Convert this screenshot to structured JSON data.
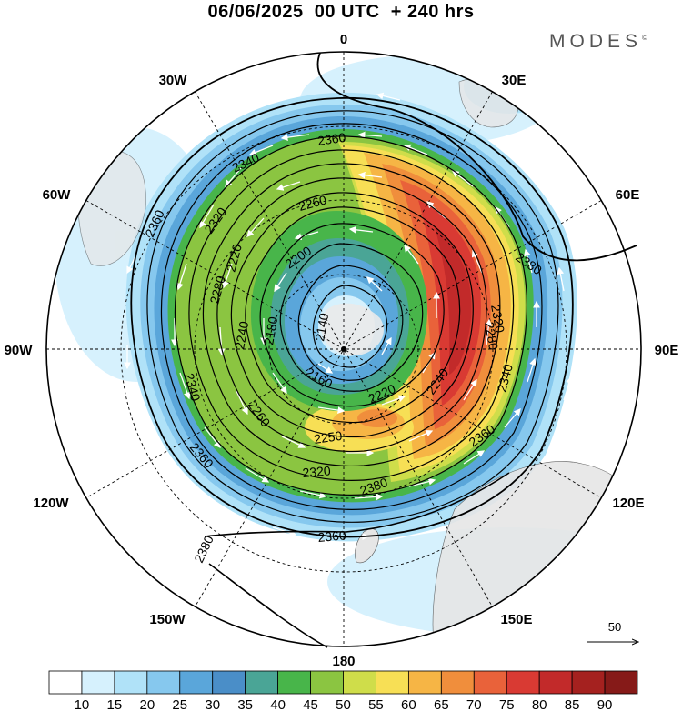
{
  "title": "06/06/2025  00 UTC  + 240 hrs",
  "brand": "MODES",
  "brand_mark": "©",
  "map": {
    "projection": "polar stereographic (south pole)",
    "longitude_labels": [
      {
        "text": "0",
        "lon": 0
      },
      {
        "text": "30E",
        "lon": 30
      },
      {
        "text": "60E",
        "lon": 60
      },
      {
        "text": "90E",
        "lon": 90
      },
      {
        "text": "120E",
        "lon": 120
      },
      {
        "text": "150E",
        "lon": 150
      },
      {
        "text": "180",
        "lon": 180
      },
      {
        "text": "150W",
        "lon": -150
      },
      {
        "text": "120W",
        "lon": -120
      },
      {
        "text": "90W",
        "lon": -90
      },
      {
        "text": "60W",
        "lon": -60
      },
      {
        "text": "30W",
        "lon": -30
      }
    ],
    "contour_labels": [
      "2360",
      "2340",
      "2360",
      "2320",
      "2280",
      "2260",
      "2200",
      "2280",
      "2180",
      "2140",
      "2240",
      "2220",
      "2160",
      "2240",
      "2260",
      "2220",
      "2250",
      "2320",
      "2320",
      "2340",
      "2360",
      "2380",
      "2340",
      "2360",
      "2380",
      "2380",
      "2360"
    ],
    "wind_vector_scale": {
      "label": "50"
    },
    "colorbar": {
      "ticks": [
        "10",
        "15",
        "20",
        "25",
        "30",
        "35",
        "40",
        "45",
        "50",
        "55",
        "60",
        "65",
        "70",
        "75",
        "80",
        "85",
        "90"
      ],
      "colors": [
        "#ffffff",
        "#d6f1fd",
        "#b0e2f8",
        "#86c8ee",
        "#5aa6da",
        "#4a8ec8",
        "#4aa596",
        "#48b54a",
        "#8bc541",
        "#cfdd4a",
        "#f7df55",
        "#f6b545",
        "#f08e3c",
        "#e9623a",
        "#d93a33",
        "#c22a2a",
        "#a5211f",
        "#861a18"
      ]
    }
  }
}
